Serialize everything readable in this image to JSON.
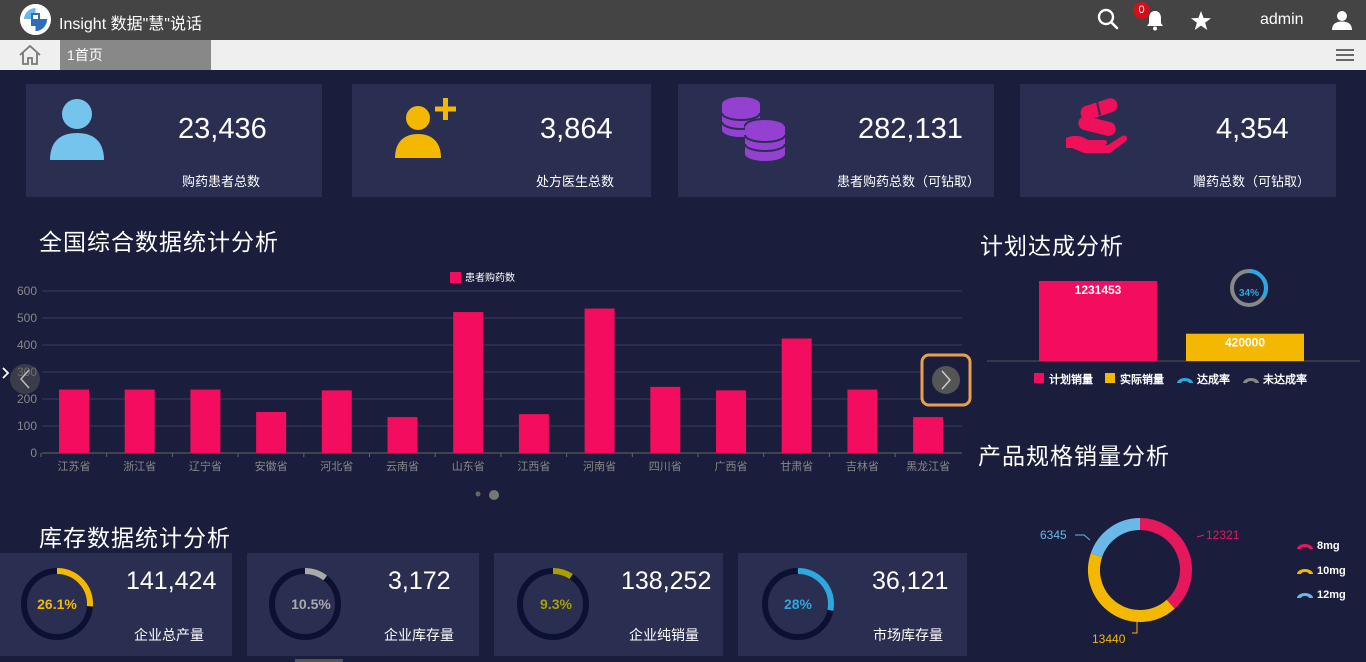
{
  "header": {
    "app_title": "Insight 数据\"慧\"说话",
    "notification_count": "0",
    "user_name": "admin"
  },
  "tabs": {
    "active_label": "1首页"
  },
  "stats": [
    {
      "value": "23,436",
      "label": "购药患者总数",
      "icon": "user-icon",
      "color": "#74c4ee"
    },
    {
      "value": "3,864",
      "label": "处方医生总数",
      "icon": "add-user-icon",
      "color": "#f5b800"
    },
    {
      "value": "282,131",
      "label": "患者购药总数（可钻取）",
      "icon": "coins-icon",
      "color": "#9440d0"
    },
    {
      "value": "4,354",
      "label": "赠药总数（可钻取）",
      "icon": "pills-hand-icon",
      "color": "#f0105a"
    }
  ],
  "national": {
    "title": "全国综合数据统计分析",
    "chart_data": {
      "type": "bar",
      "categories": [
        "江苏省",
        "浙江省",
        "辽宁省",
        "安徽省",
        "河北省",
        "云南省",
        "山东省",
        "江西省",
        "河南省",
        "四川省",
        "广西省",
        "甘肃省",
        "吉林省",
        "黑龙江省"
      ],
      "series": [
        {
          "name": "患者购药数",
          "values": [
            235,
            235,
            235,
            152,
            232,
            133,
            522,
            144,
            535,
            245,
            232,
            424,
            235,
            133
          ],
          "color": "#f40c5e"
        }
      ],
      "yticks": [
        "600",
        "500",
        "400",
        "300",
        "200",
        "100",
        "0"
      ],
      "ylim": [
        0,
        600
      ],
      "legend": "top-center",
      "grid": true
    }
  },
  "plan": {
    "title": "计划达成分析",
    "chart_data": {
      "type": "bar",
      "series": [
        {
          "name": "计划销量",
          "value": 1231453,
          "label": "1231453",
          "color": "#f40c5e"
        },
        {
          "name": "实际销量",
          "value": 420000,
          "label": "420000",
          "color": "#f5b800"
        }
      ],
      "rate": {
        "label": "34%",
        "value": 0.34,
        "legend_achieved": "达成率",
        "legend_unachieved": "未达成率",
        "achieved_color": "#2ea7e0",
        "unachieved_color": "#888888"
      }
    }
  },
  "product": {
    "title": "产品规格销量分析",
    "chart_data": {
      "type": "pie",
      "slices": [
        {
          "name": "8mg",
          "value": 12321,
          "label": "12321",
          "color": "#e6185c"
        },
        {
          "name": "10mg",
          "value": 13440,
          "label": "13440",
          "color": "#f5b800"
        },
        {
          "name": "12mg",
          "value": 6345,
          "label": "6345",
          "color": "#6ab8e8"
        }
      ]
    }
  },
  "inventory": {
    "title": "库存数据统计分析",
    "items": [
      {
        "pct": "26.1%",
        "fraction": 0.261,
        "value": "141,424",
        "label": "企业总产量",
        "color": "#f5b800"
      },
      {
        "pct": "10.5%",
        "fraction": 0.105,
        "value": "3,172",
        "label": "企业库存量",
        "color": "#aaaaaa"
      },
      {
        "pct": "9.3%",
        "fraction": 0.093,
        "value": "138,252",
        "label": "企业纯销量",
        "color": "#a8a000"
      },
      {
        "pct": "28%",
        "fraction": 0.28,
        "value": "36,121",
        "label": "市场库存量",
        "color": "#2ea7e0"
      }
    ]
  }
}
